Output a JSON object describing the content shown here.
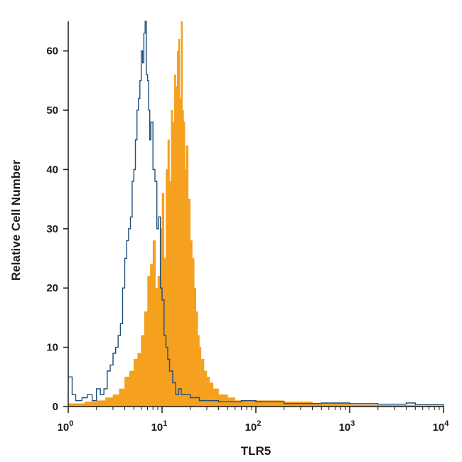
{
  "chart_data": {
    "type": "area",
    "xlabel": "TLR5",
    "ylabel": "Relative Cell Number",
    "xscale": "log",
    "xlim": [
      1,
      10000
    ],
    "ylim": [
      0,
      65
    ],
    "x_ticks": [
      {
        "value": 1,
        "base": "10",
        "exp": "0"
      },
      {
        "value": 10,
        "base": "10",
        "exp": "1"
      },
      {
        "value": 100,
        "base": "10",
        "exp": "2"
      },
      {
        "value": 1000,
        "base": "10",
        "exp": "3"
      },
      {
        "value": 10000,
        "base": "10",
        "exp": "4"
      }
    ],
    "y_ticks": [
      0,
      10,
      20,
      30,
      40,
      50,
      60
    ],
    "grid": false,
    "legend": "none",
    "series": [
      {
        "style": "filled",
        "color": "#f5a01e",
        "x": [
          1,
          1.5,
          2,
          2.5,
          3,
          3.5,
          4,
          4.5,
          5,
          5.5,
          6,
          6.5,
          7,
          7.5,
          8,
          8.5,
          9,
          9.5,
          10,
          10.5,
          11,
          11.5,
          12,
          12.5,
          13,
          13.5,
          14,
          14.5,
          15,
          15.5,
          16,
          16.5,
          17,
          17.5,
          18,
          19,
          20,
          21,
          22,
          23,
          24,
          25,
          26,
          28,
          30,
          32,
          35,
          40,
          50,
          60,
          80,
          100,
          150,
          200,
          300,
          400,
          600,
          1000,
          2000,
          5000,
          10000
        ],
        "values": [
          0.5,
          0.8,
          1,
          1.5,
          2,
          3,
          5,
          6,
          8,
          9,
          12,
          16,
          22,
          24,
          28,
          20,
          22,
          30,
          36,
          25,
          40,
          45,
          38,
          50,
          48,
          56,
          54,
          60,
          62,
          52,
          65,
          50,
          48,
          40,
          44,
          35,
          28,
          25,
          20,
          16,
          12,
          10,
          8,
          6,
          5,
          4,
          3,
          2,
          1.5,
          1,
          1,
          1,
          1,
          0.8,
          0.8,
          0.6,
          0.5,
          0.3,
          0.2,
          0.1,
          0
        ]
      },
      {
        "style": "line",
        "color": "#1f4e79",
        "x": [
          1,
          1.1,
          1.2,
          1.4,
          1.6,
          1.8,
          2,
          2.2,
          2.4,
          2.6,
          2.8,
          3,
          3.2,
          3.4,
          3.6,
          3.8,
          4,
          4.2,
          4.4,
          4.6,
          4.8,
          5,
          5.2,
          5.4,
          5.6,
          5.8,
          6,
          6.2,
          6.4,
          6.6,
          6.8,
          7,
          7.2,
          7.4,
          7.6,
          8,
          8.4,
          8.8,
          9.2,
          9.6,
          10,
          10.5,
          11,
          11.5,
          12,
          13,
          14,
          15,
          16,
          18,
          20,
          25,
          30,
          40,
          50,
          70,
          100,
          200,
          500,
          1000,
          2000,
          4000,
          5000,
          10000
        ],
        "values": [
          5,
          2,
          1,
          1.5,
          2,
          1,
          3,
          2,
          3,
          6,
          7,
          9,
          10,
          12,
          14,
          20,
          25,
          28,
          30,
          32,
          38,
          40,
          45,
          50,
          52,
          55,
          60,
          58,
          63,
          65,
          56,
          55,
          50,
          45,
          48,
          40,
          38,
          30,
          32,
          20,
          18,
          12,
          10,
          8,
          6,
          4,
          2,
          3,
          2,
          2,
          1.5,
          1,
          1,
          0.8,
          0.8,
          1,
          0.8,
          0.5,
          0.6,
          0.5,
          0.4,
          0.6,
          0.3,
          0
        ]
      }
    ]
  }
}
